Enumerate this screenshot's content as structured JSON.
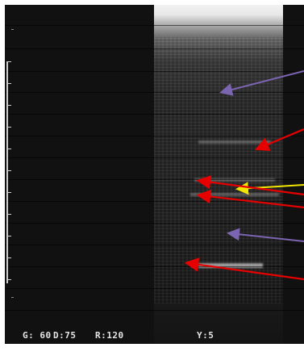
{
  "image": {
    "params": {
      "gain": "G: 60",
      "depth": "D:75",
      "range": "R:120",
      "zoom": "Y:5"
    }
  },
  "colors": {
    "red_arrow": "#e60000",
    "purple_arrow": "#7b64b0",
    "yellow_arrow": "#f2e600",
    "scale": "#cfcfcf",
    "background": "#111111"
  },
  "arrows": [
    {
      "name": "purple-arrow-upper",
      "color": "purple"
    },
    {
      "name": "red-arrow-1",
      "color": "red"
    },
    {
      "name": "yellow-arrow",
      "color": "yellow"
    },
    {
      "name": "red-arrow-2",
      "color": "red"
    },
    {
      "name": "red-arrow-3",
      "color": "red"
    },
    {
      "name": "purple-arrow-lower",
      "color": "purple"
    },
    {
      "name": "red-arrow-4",
      "color": "red"
    }
  ]
}
